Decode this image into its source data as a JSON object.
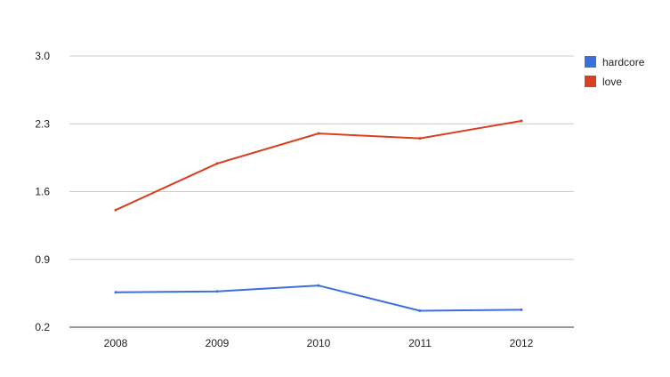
{
  "chart_data": {
    "type": "line",
    "title": "",
    "xlabel": "",
    "ylabel": "",
    "categories": [
      "2008",
      "2009",
      "2010",
      "2011",
      "2012"
    ],
    "ylim": [
      0.2,
      3.0
    ],
    "yticks": [
      "0.2",
      "0.9",
      "1.6",
      "2.3",
      "3.0"
    ],
    "grid": true,
    "legend_position": "right",
    "series": [
      {
        "name": "hardcore",
        "color": "#3c6fd8",
        "values": [
          0.56,
          0.57,
          0.63,
          0.37,
          0.38
        ]
      },
      {
        "name": "love",
        "color": "#d9401f",
        "values": [
          1.41,
          1.89,
          2.2,
          2.15,
          2.33
        ]
      }
    ]
  }
}
